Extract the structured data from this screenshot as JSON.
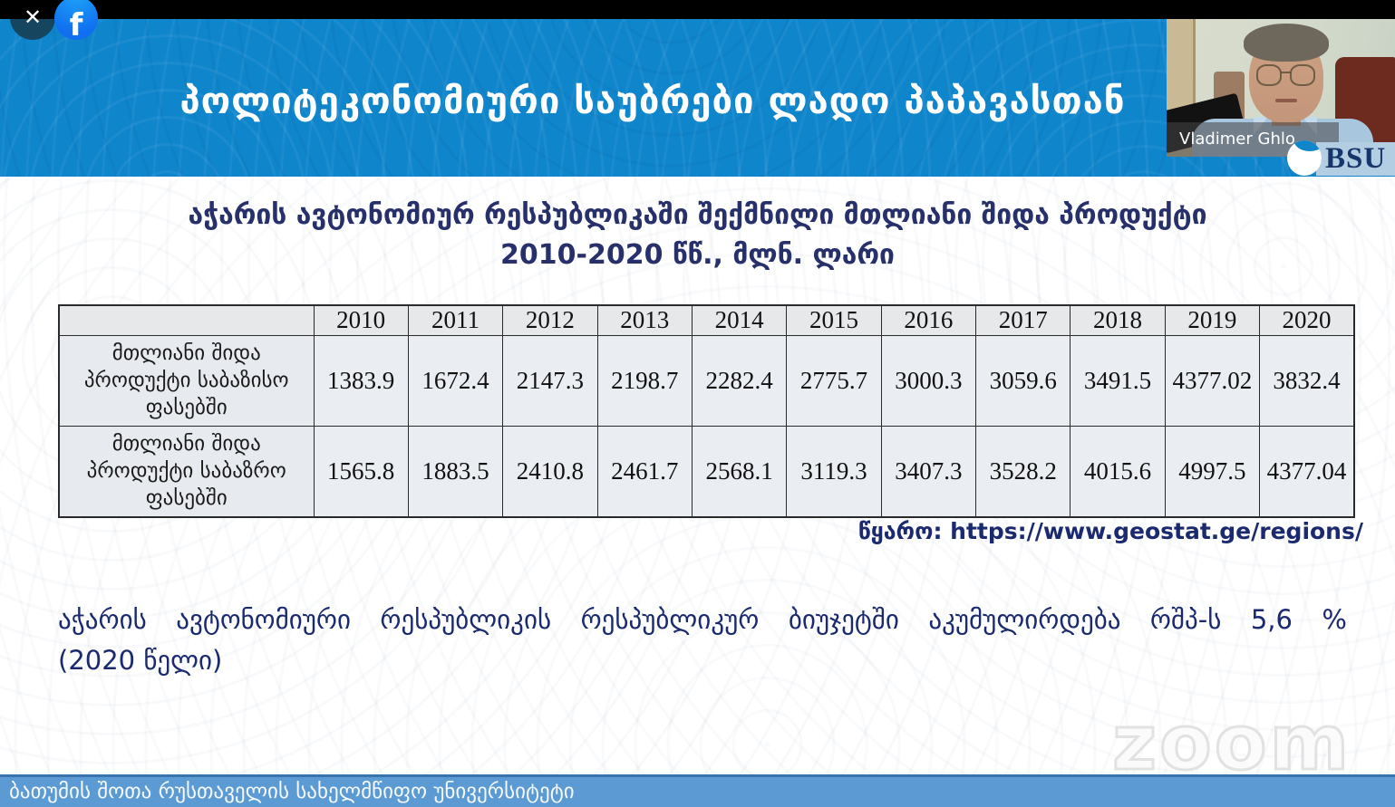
{
  "stream": {
    "close_icon": "✕",
    "facebook_icon": "f"
  },
  "header": {
    "title": "პოლიტეკონომიური საუბრები ლადო პაპავასთან"
  },
  "webcam": {
    "participant_name": "Vladimer Ghlo..."
  },
  "bsu_logo": {
    "text": "BSU"
  },
  "slide": {
    "title_line1": "აჭარის ავტონომიურ რესპუბლიკაში შექმნილი მთლიანი შიდა პროდუქტი",
    "title_line2": "2010-2020 წწ., მლნ. ლარი",
    "source": "წყარო: https://www.geostat.ge/regions/",
    "note_line1": "აჭარის ავტონომიური რესპუბლიკის რესპუბლიკურ ბიუჯეტში აკუმულირდება რშპ-ს 5,6 %",
    "note_line2": "(2020 წელი)"
  },
  "table": {
    "years": [
      "2010",
      "2011",
      "2012",
      "2013",
      "2014",
      "2015",
      "2016",
      "2017",
      "2018",
      "2019",
      "2020"
    ],
    "rows": [
      {
        "label": "მთლიანი შიდა პროდუქტი საბაზისო ფასებში",
        "values": [
          "1383.9",
          "1672.4",
          "2147.3",
          "2198.7",
          "2282.4",
          "2775.7",
          "3000.3",
          "3059.6",
          "3491.5",
          "4377.02",
          "3832.4"
        ]
      },
      {
        "label": "მთლიანი შიდა პროდუქტი საბაზრო ფასებში",
        "values": [
          "1565.8",
          "1883.5",
          "2410.8",
          "2461.7",
          "2568.1",
          "3119.3",
          "3407.3",
          "3528.2",
          "4015.6",
          "4997.5",
          "4377.04"
        ]
      }
    ]
  },
  "chart_data": {
    "type": "table",
    "title": "აჭარის ავტონომიურ რესპუბლიკაში შექმნილი მთლიანი შიდა პროდუქტი 2010-2020 წწ., მლნ. ლარი",
    "categories": [
      "2010",
      "2011",
      "2012",
      "2013",
      "2014",
      "2015",
      "2016",
      "2017",
      "2018",
      "2019",
      "2020"
    ],
    "series": [
      {
        "name": "მთლიანი შიდა პროდუქტი საბაზისო ფასებში",
        "values": [
          1383.9,
          1672.4,
          2147.3,
          2198.7,
          2282.4,
          2775.7,
          3000.3,
          3059.6,
          3491.5,
          4377.02,
          3832.4
        ]
      },
      {
        "name": "მთლიანი შიდა პროდუქტი საბაზრო ფასებში",
        "values": [
          1565.8,
          1883.5,
          2410.8,
          2461.7,
          2568.1,
          3119.3,
          3407.3,
          3528.2,
          4015.6,
          4997.5,
          4377.04
        ]
      }
    ],
    "source": "https://www.geostat.ge/regions/"
  },
  "footer": {
    "text": "ბათუმის შოთა რუსთაველის სახელმწიფო უნივერსიტეტი"
  },
  "watermark": {
    "text": "zoom"
  },
  "colors": {
    "band_blue": "#0f85cc",
    "footer_blue": "#5b9ad2",
    "title_navy": "#28306b",
    "facebook_blue": "#1877f2"
  }
}
